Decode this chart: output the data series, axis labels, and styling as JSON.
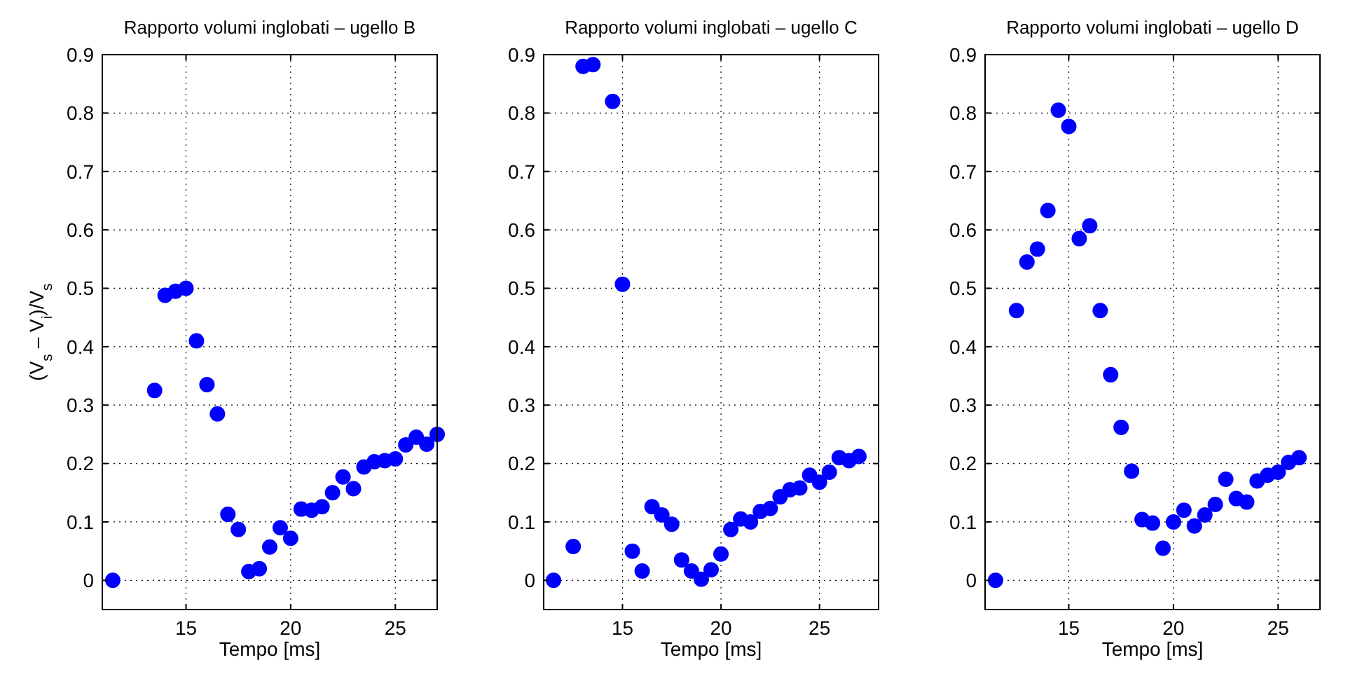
{
  "chart_data": [
    {
      "type": "scatter",
      "title": "Rapporto volumi inglobati – ugello B",
      "xlabel": "Tempo [ms]",
      "ylabel": "(V$_{s}$ – V$_{i}$)/V$_{s}$",
      "xlim": [
        11,
        27
      ],
      "xticks": [
        15,
        20,
        25
      ],
      "ylim": [
        -0.05,
        0.9
      ],
      "yticks": [
        0,
        0.1,
        0.2,
        0.3,
        0.4,
        0.5,
        0.6,
        0.7,
        0.8,
        0.9
      ],
      "grid": true,
      "marker": "circle",
      "x": [
        11.5,
        13.5,
        14,
        14.5,
        15,
        15.5,
        16,
        16.5,
        17,
        17.5,
        18,
        18.5,
        19,
        19.5,
        20,
        20.5,
        21,
        21.5,
        22,
        22.5,
        23,
        23.5,
        24,
        24.5,
        25,
        25.5,
        26,
        26.5,
        27
      ],
      "series": [
        {
          "color": "#0000ff",
          "values": [
            0,
            0.325,
            0.488,
            0.495,
            0.5,
            0.41,
            0.335,
            0.285,
            0.113,
            0.087,
            0.015,
            0.02,
            0.057,
            0.09,
            0.072,
            0.122,
            0.12,
            0.126,
            0.15,
            0.177,
            0.157,
            0.194,
            0.203,
            0.205,
            0.208,
            0.232,
            0.245,
            0.233,
            0.25
          ]
        }
      ]
    },
    {
      "type": "scatter",
      "title": "Rapporto volumi inglobati – ugello C",
      "xlabel": "Tempo [ms]",
      "xlim": [
        11,
        28
      ],
      "xticks": [
        15,
        20,
        25
      ],
      "ylim": [
        -0.05,
        0.9
      ],
      "yticks": [
        0,
        0.1,
        0.2,
        0.3,
        0.4,
        0.5,
        0.6,
        0.7,
        0.8,
        0.9
      ],
      "grid": true,
      "marker": "circle",
      "x": [
        11.5,
        12.5,
        13,
        13.5,
        14.5,
        15,
        15.5,
        16,
        16.5,
        17,
        17.5,
        18,
        18.5,
        19,
        19.5,
        20,
        20.5,
        21,
        21.5,
        22,
        22.5,
        23,
        23.5,
        24,
        24.5,
        25,
        25.5,
        26,
        26.5,
        27
      ],
      "series": [
        {
          "color": "#0000ff",
          "values": [
            0,
            0.058,
            0.88,
            0.883,
            0.82,
            0.507,
            0.05,
            0.016,
            0.126,
            0.112,
            0.096,
            0.035,
            0.016,
            0.002,
            0.018,
            0.045,
            0.087,
            0.105,
            0.1,
            0.118,
            0.123,
            0.143,
            0.155,
            0.158,
            0.18,
            0.168,
            0.185,
            0.21,
            0.205,
            0.212
          ]
        }
      ]
    },
    {
      "type": "scatter",
      "title": "Rapporto volumi inglobati – ugello D",
      "xlabel": "Tempo [ms]",
      "xlim": [
        11,
        27
      ],
      "xticks": [
        15,
        20,
        25
      ],
      "ylim": [
        -0.05,
        0.9
      ],
      "yticks": [
        0,
        0.1,
        0.2,
        0.3,
        0.4,
        0.5,
        0.6,
        0.7,
        0.8,
        0.9
      ],
      "grid": true,
      "marker": "circle",
      "x": [
        11.5,
        12.5,
        13,
        13.5,
        14,
        14.5,
        15,
        15.5,
        16,
        16.5,
        17,
        17.5,
        18,
        18.5,
        19,
        19.5,
        20,
        20.5,
        21,
        21.5,
        22,
        22.5,
        23,
        23.5,
        24,
        24.5,
        25,
        25.5,
        26
      ],
      "series": [
        {
          "color": "#0000ff",
          "values": [
            0,
            0.462,
            0.545,
            0.567,
            0.633,
            0.805,
            0.777,
            0.585,
            0.607,
            0.462,
            0.352,
            0.262,
            0.187,
            0.104,
            0.098,
            0.055,
            0.1,
            0.12,
            0.093,
            0.112,
            0.13,
            0.173,
            0.14,
            0.134,
            0.17,
            0.18,
            0.185,
            0.202,
            0.21
          ]
        }
      ]
    }
  ]
}
